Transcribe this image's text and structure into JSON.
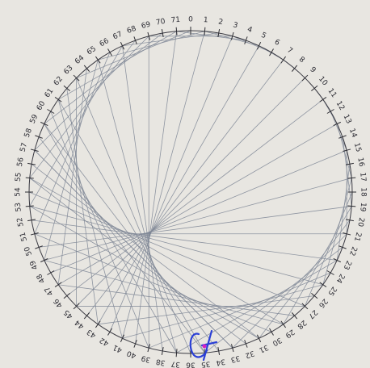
{
  "labels": [
    "0",
    "1",
    "2",
    "3",
    "4",
    "5",
    "6",
    "7",
    "8",
    "9",
    "10",
    "11",
    "12",
    "13",
    "14",
    "15",
    "16",
    "17",
    "18",
    "19",
    "20",
    "21",
    "22",
    "23",
    "24",
    "25",
    "26",
    "27",
    "28",
    "29",
    "30",
    "31",
    "32",
    "33",
    "34",
    "35",
    "36",
    "37",
    "38",
    "39",
    "40",
    "41",
    "42",
    "43",
    "44",
    "45",
    "46",
    "47",
    "48",
    "49",
    "50",
    "51",
    "52",
    "53",
    "54",
    "55",
    "56",
    "57",
    "58",
    "59",
    "60",
    "61",
    "62",
    "63",
    "64",
    "65",
    "66",
    "67",
    "68",
    "69",
    "70",
    "71"
  ]
}
